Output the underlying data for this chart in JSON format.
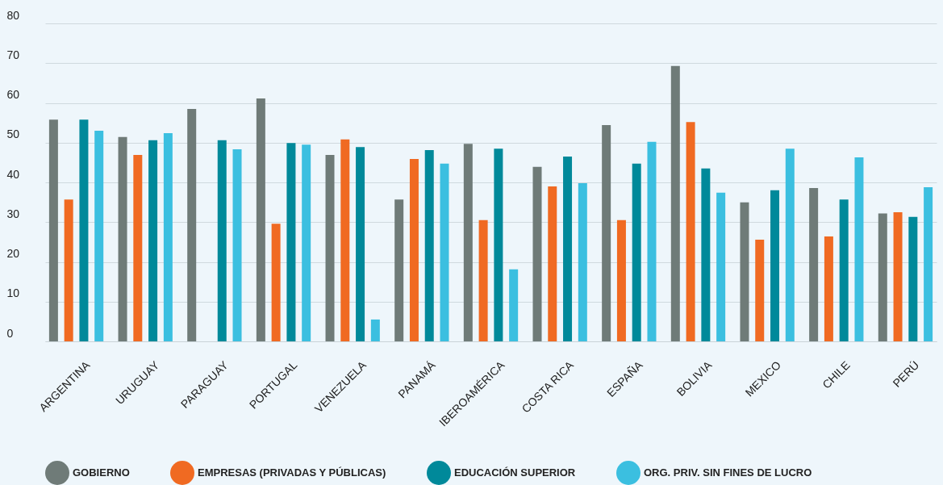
{
  "chart_data": {
    "type": "bar",
    "categories": [
      "ARGENTINA",
      "URUGUAY",
      "PARAGUAY",
      "PORTUGAL",
      "VENEZUELA",
      "PANAMÁ",
      "IBEROAMÉRICA",
      "COSTA RICA",
      "ESPAÑA",
      "BOLIVIA",
      "MEXICO",
      "CHILE",
      "PERÚ"
    ],
    "series": [
      {
        "name": "GOBIERNO",
        "color": "#6f7b78",
        "values": [
          55.8,
          51.4,
          58.5,
          61.1,
          46.9,
          35.7,
          49.7,
          43.9,
          54.4,
          69.3,
          35,
          38.6,
          32.2
        ]
      },
      {
        "name": "EMPRESAS (PRIVADAS Y PÚBLICAS)",
        "color": "#f06a22",
        "values": [
          35.7,
          46.9,
          null,
          29.6,
          50.8,
          45.9,
          30.5,
          39,
          30.5,
          55.2,
          25.6,
          26.4,
          32.5
        ]
      },
      {
        "name": "EDUCACIÓN SUPERIOR",
        "color": "#00899a",
        "values": [
          55.8,
          50.6,
          50.6,
          49.9,
          48.9,
          48.1,
          48.5,
          46.5,
          44.7,
          43.5,
          38,
          35.7,
          31.3
        ]
      },
      {
        "name": "ORG. PRIV. SIN FINES DE LUCRO",
        "color": "#3bbfe0",
        "values": [
          53,
          52.4,
          48.3,
          49.5,
          5.5,
          44.7,
          18.1,
          39.8,
          50.2,
          37.4,
          48.5,
          46.3,
          38.8
        ]
      }
    ],
    "ylim": [
      0,
      80
    ],
    "yticks": [
      0,
      10,
      20,
      30,
      40,
      50,
      60,
      70,
      80
    ],
    "grid": "y",
    "legend": "bottom"
  }
}
